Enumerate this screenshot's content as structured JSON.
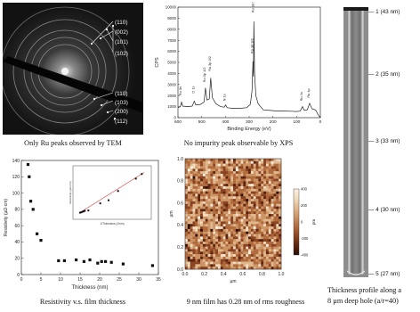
{
  "captions": {
    "tem": "Only Ru peaks observed by TEM",
    "xps": "No impurity peak observable by XPS",
    "resistivity": "Resistivity v.s. film thickness",
    "afm": "9 nm film has 0.28 nm of rms roughness",
    "profile_line1": "Thickness profile along a",
    "profile_line2": "8 µm deep hole (a/r=40)"
  },
  "tem": {
    "ring_labels_top": [
      "(110)",
      "(002)",
      "(101)",
      "(102)"
    ],
    "ring_labels_bottom": [
      "(110)",
      "(103)",
      "(200)",
      "(112)"
    ]
  },
  "profile": {
    "markers": [
      "1 (43 nm)",
      "2 (35 nm)",
      "3 (33 nm)",
      "4 (30 nm)",
      "5 (27 nm)"
    ]
  },
  "chart_data": [
    {
      "type": "line",
      "title": "",
      "xlabel": "Binding Energy (eV)",
      "ylabel": "CPS",
      "xlim": [
        600,
        0
      ],
      "ylim": [
        0,
        10000
      ],
      "x_ticks": [
        "600",
        "500",
        "400",
        "300",
        "200",
        "100",
        "0"
      ],
      "y_ticks": [
        "0",
        "1000",
        "2000",
        "3000",
        "4000",
        "5000",
        "6000",
        "7000",
        "8000",
        "9000",
        "10000"
      ],
      "peak_labels": [
        {
          "label": "Ru 3s",
          "x": 585,
          "y": 2000
        },
        {
          "label": "O 1s",
          "x": 531,
          "y": 2200
        },
        {
          "label": "Ru 3p 1/2",
          "x": 484,
          "y": 3200
        },
        {
          "label": "Ru 3p 3/2",
          "x": 462,
          "y": 4200
        },
        {
          "label": "N 1s",
          "x": 399,
          "y": 1500
        },
        {
          "label": "Ru 3d 5/2",
          "x": 280,
          "y": 9500
        },
        {
          "label": "Ru 3d 3/2",
          "x": 284,
          "y": 5800
        },
        {
          "label": "Ru 4s",
          "x": 75,
          "y": 1500
        },
        {
          "label": "Ru 4p",
          "x": 45,
          "y": 1800
        }
      ],
      "series": [
        {
          "x": [
            600,
            590,
            585,
            580,
            560,
            540,
            531,
            525,
            505,
            490,
            484,
            478,
            468,
            462,
            455,
            440,
            420,
            405,
            399,
            393,
            370,
            340,
            310,
            295,
            288,
            284,
            282,
            280,
            277,
            272,
            262,
            240,
            210,
            180,
            150,
            120,
            100,
            85,
            75,
            68,
            55,
            45,
            35,
            20,
            10,
            0
          ],
          "y": [
            900,
            1000,
            1400,
            1050,
            1000,
            1050,
            1500,
            1150,
            1200,
            1400,
            2700,
            1600,
            1700,
            3600,
            1800,
            1250,
            1000,
            950,
            1150,
            900,
            850,
            850,
            900,
            1200,
            2400,
            5100,
            3700,
            8700,
            4000,
            2000,
            1250,
            700,
            650,
            600,
            600,
            580,
            560,
            600,
            1000,
            650,
            700,
            1300,
            800,
            700,
            300,
            0
          ]
        }
      ]
    },
    {
      "type": "scatter",
      "title": "",
      "xlabel": "Thickness (nm)",
      "ylabel": "Resistivity (µΩ·cm)",
      "xlim": [
        0,
        35
      ],
      "ylim": [
        0,
        140
      ],
      "x_ticks": [
        "0",
        "5",
        "10",
        "15",
        "20",
        "25",
        "30",
        "35"
      ],
      "y_ticks": [
        "0",
        "20",
        "40",
        "60",
        "80",
        "100",
        "120",
        "140"
      ],
      "series": [
        {
          "x": [
            1.7,
            2.0,
            2.4,
            3.0,
            4.0,
            5.0,
            9.5,
            11.0,
            14.0,
            16.0,
            17.5,
            19.5,
            20.5,
            21.5,
            23.0,
            26.0,
            33.5
          ],
          "y": [
            135,
            120,
            90,
            80,
            50,
            42,
            17,
            17,
            18,
            16,
            18,
            14,
            16,
            16,
            15,
            13,
            11
          ]
        }
      ],
      "inset": {
        "type": "scatter",
        "xlabel": "1/Thickness (1/nm)",
        "ylabel": "Resistivity (µΩ·cm)",
        "x": [
          0.03,
          0.04,
          0.05,
          0.06,
          0.07,
          0.1,
          0.2,
          0.27,
          0.35,
          0.5,
          0.55
        ],
        "y": [
          10,
          11,
          13,
          14,
          16,
          17,
          40,
          50,
          80,
          120,
          135
        ]
      }
    },
    {
      "type": "heatmap",
      "title": "",
      "xlabel": "µm",
      "ylabel": "µm",
      "xlim": [
        0.0,
        1.0
      ],
      "ylim": [
        0.0,
        1.0
      ],
      "x_ticks": [
        "0.0",
        "0.2",
        "0.4",
        "0.6",
        "0.8",
        "1.0"
      ],
      "y_ticks": [
        "0.0",
        "0.2",
        "0.4",
        "0.6",
        "0.8",
        "1.0"
      ],
      "colorbar_label": "pm",
      "colorbar_ticks": [
        "-400",
        "-300",
        "-200",
        "-100",
        "0",
        "100",
        "200",
        "300",
        "400"
      ],
      "colorbar_range": [
        -400,
        400
      ]
    }
  ]
}
